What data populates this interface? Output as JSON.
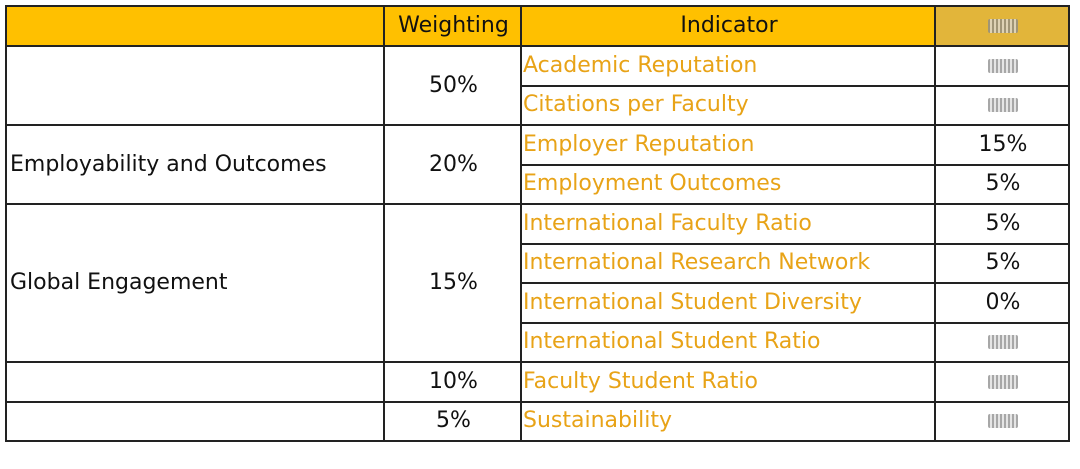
{
  "columns": {
    "lens": "",
    "weighting": "Weighting",
    "indicator": "Indicator",
    "indicator_weight": ""
  },
  "rows": [
    {
      "lens": "",
      "weighting": "50%",
      "indicators": [
        {
          "name": "Academic Reputation",
          "weight": ""
        },
        {
          "name": "Citations per Faculty",
          "weight": ""
        }
      ]
    },
    {
      "lens": "Employability and Outcomes",
      "weighting": "20%",
      "indicators": [
        {
          "name": "Employer Reputation",
          "weight": "15%"
        },
        {
          "name": "Employment Outcomes",
          "weight": "5%"
        }
      ]
    },
    {
      "lens": "Global Engagement",
      "weighting": "15%",
      "indicators": [
        {
          "name": "International Faculty Ratio",
          "weight": "5%"
        },
        {
          "name": "International Research Network",
          "weight": "5%"
        },
        {
          "name": "International Student Diversity",
          "weight": "0%"
        },
        {
          "name": "International Student Ratio",
          "weight": ""
        }
      ]
    },
    {
      "lens": "",
      "weighting": "10%",
      "indicators": [
        {
          "name": "Faculty Student Ratio",
          "weight": ""
        }
      ]
    },
    {
      "lens": "",
      "weighting": "5%",
      "indicators": [
        {
          "name": "Sustainability",
          "weight": ""
        }
      ]
    }
  ],
  "colors": {
    "header_bg": "#ffc000",
    "indicator_text": "#e8a317",
    "border": "#222222"
  }
}
